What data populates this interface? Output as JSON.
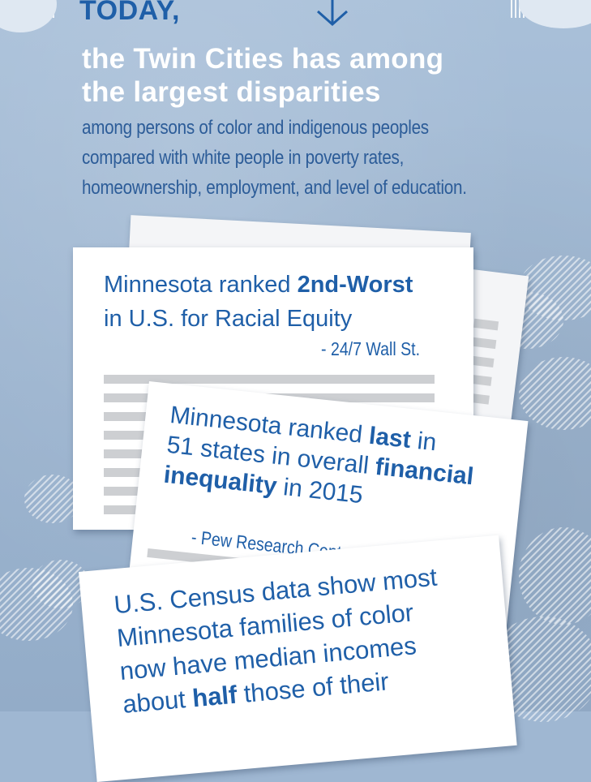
{
  "header": {
    "today": "TODAY,",
    "headline_line1": "the Twin Cities has among",
    "headline_line2": "the largest disparities",
    "sub_line1": "among persons of color and indigenous peoples",
    "sub_line2": "compared with white people in poverty rates,",
    "sub_line3": "homeownership, employment, and level of education."
  },
  "card_equity": {
    "prefix": "Minnesota ranked ",
    "emphasis": "2nd-Worst",
    "line2": "in U.S. for Racial Equity",
    "source": "- 24/7 Wall St."
  },
  "card_inequality": {
    "l1_prefix": "Minnesota ranked ",
    "l1_emphasis": "last",
    "l1_suffix": " in",
    "l2_prefix": "51 states in overall ",
    "l2_emphasis": "financial",
    "l3_emphasis": "inequality",
    "l3_suffix": " in 2015",
    "source": "- Pew Research Center via Wall St."
  },
  "card_census": {
    "line1": "U.S. Census data show most",
    "line2": "Minnesota families of color",
    "line3": "now have median incomes",
    "l4_prefix": "about ",
    "l4_emphasis": "half",
    "l4_suffix": " those of their"
  },
  "colors": {
    "accent": "#1f5fa8",
    "sub": "#2c5c98",
    "background": "#9fb7d2"
  },
  "icons": {
    "arrow": "arrow-down-icon"
  }
}
